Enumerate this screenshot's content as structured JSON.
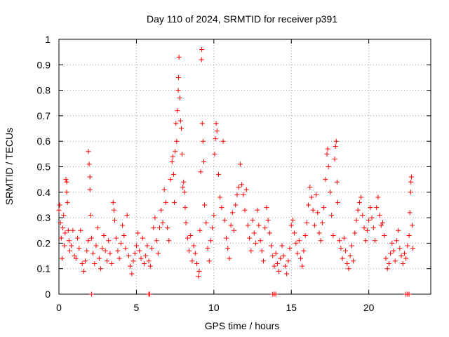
{
  "chart_data": {
    "type": "scatter",
    "title": "Day 110 of 2024, SRMTID for receiver p391",
    "xlabel": "GPS time / hours",
    "ylabel": "SRMTID / TECUs",
    "xlim": [
      0,
      24
    ],
    "ylim": [
      0,
      1
    ],
    "xticks": [
      0,
      5,
      10,
      15,
      20
    ],
    "xtick_labels": [
      "0",
      "5",
      "10",
      "15",
      "20"
    ],
    "yticks": [
      0,
      0.1,
      0.2,
      0.3,
      0.4,
      0.5,
      0.6,
      0.7,
      0.8,
      0.9,
      1
    ],
    "ytick_labels": [
      "0",
      "0.1",
      "0.2",
      "0.3",
      "0.4",
      "0.5",
      "0.6",
      "0.7",
      "0.8",
      "0.9",
      "1"
    ],
    "grid": true,
    "marker": "+",
    "color": "#ff0000",
    "series": [
      {
        "name": "SRMTID",
        "points": [
          [
            0.0,
            0.33
          ],
          [
            0.05,
            0.35
          ],
          [
            0.1,
            0.28
          ],
          [
            0.15,
            0.22
          ],
          [
            0.2,
            0.14
          ],
          [
            0.25,
            0.26
          ],
          [
            0.3,
            0.31
          ],
          [
            0.35,
            0.19
          ],
          [
            0.4,
            0.24
          ],
          [
            0.45,
            0.45
          ],
          [
            0.5,
            0.44
          ],
          [
            0.5,
            0.4
          ],
          [
            0.55,
            0.36
          ],
          [
            0.6,
            0.25
          ],
          [
            0.65,
            0.21
          ],
          [
            0.7,
            0.17
          ],
          [
            0.8,
            0.19
          ],
          [
            0.9,
            0.25
          ],
          [
            1.0,
            0.15
          ],
          [
            1.1,
            0.14
          ],
          [
            1.2,
            0.22
          ],
          [
            1.3,
            0.18
          ],
          [
            1.4,
            0.25
          ],
          [
            1.5,
            0.12
          ],
          [
            1.6,
            0.09
          ],
          [
            1.7,
            0.13
          ],
          [
            1.8,
            0.17
          ],
          [
            1.9,
            0.21
          ],
          [
            1.9,
            0.56
          ],
          [
            1.95,
            0.51
          ],
          [
            2.0,
            0.46
          ],
          [
            2.0,
            0.41
          ],
          [
            2.05,
            0.31
          ],
          [
            2.1,
            0.22
          ],
          [
            2.2,
            0.16
          ],
          [
            2.3,
            0.12
          ],
          [
            2.4,
            0.19
          ],
          [
            2.5,
            0.26
          ],
          [
            2.6,
            0.14
          ],
          [
            2.7,
            0.1
          ],
          [
            2.8,
            0.18
          ],
          [
            2.9,
            0.23
          ],
          [
            3.0,
            0.17
          ],
          [
            3.1,
            0.13
          ],
          [
            3.2,
            0.21
          ],
          [
            3.3,
            0.16
          ],
          [
            3.4,
            0.12
          ],
          [
            3.5,
            0.36
          ],
          [
            3.55,
            0.33
          ],
          [
            3.6,
            0.29
          ],
          [
            3.7,
            0.22
          ],
          [
            3.8,
            0.17
          ],
          [
            3.9,
            0.14
          ],
          [
            4.0,
            0.2
          ],
          [
            4.1,
            0.27
          ],
          [
            4.2,
            0.23
          ],
          [
            4.3,
            0.18
          ],
          [
            4.4,
            0.31
          ],
          [
            4.5,
            0.15
          ],
          [
            4.6,
            0.11
          ],
          [
            4.7,
            0.08
          ],
          [
            4.8,
            0.13
          ],
          [
            4.9,
            0.16
          ],
          [
            5.0,
            0.19
          ],
          [
            5.1,
            0.24
          ],
          [
            5.2,
            0.17
          ],
          [
            5.3,
            0.14
          ],
          [
            5.4,
            0.22
          ],
          [
            5.5,
            0.12
          ],
          [
            5.6,
            0.15
          ],
          [
            5.7,
            0.19
          ],
          [
            5.8,
            0.13
          ],
          [
            5.9,
            0.11
          ],
          [
            6.0,
            0.18
          ],
          [
            6.1,
            0.26
          ],
          [
            6.2,
            0.3
          ],
          [
            6.3,
            0.21
          ],
          [
            6.4,
            0.16
          ],
          [
            6.5,
            0.26
          ],
          [
            6.6,
            0.33
          ],
          [
            6.7,
            0.28
          ],
          [
            6.8,
            0.41
          ],
          [
            6.9,
            0.36
          ],
          [
            7.0,
            0.26
          ],
          [
            7.1,
            0.21
          ],
          [
            7.2,
            0.45
          ],
          [
            7.3,
            0.52
          ],
          [
            7.35,
            0.54
          ],
          [
            7.4,
            0.47
          ],
          [
            7.45,
            0.36
          ],
          [
            7.5,
            0.56
          ],
          [
            7.55,
            0.67
          ],
          [
            7.6,
            0.6
          ],
          [
            7.65,
            0.72
          ],
          [
            7.7,
            0.8
          ],
          [
            7.72,
            0.85
          ],
          [
            7.75,
            0.93
          ],
          [
            7.8,
            0.77
          ],
          [
            7.85,
            0.68
          ],
          [
            7.9,
            0.65
          ],
          [
            7.95,
            0.55
          ],
          [
            8.0,
            0.42
          ],
          [
            8.05,
            0.44
          ],
          [
            8.1,
            0.4
          ],
          [
            8.15,
            0.34
          ],
          [
            8.2,
            0.28
          ],
          [
            8.3,
            0.22
          ],
          [
            8.4,
            0.17
          ],
          [
            8.5,
            0.23
          ],
          [
            8.6,
            0.13
          ],
          [
            8.7,
            0.19
          ],
          [
            8.8,
            0.16
          ],
          [
            8.9,
            0.12
          ],
          [
            9.0,
            0.07
          ],
          [
            9.05,
            0.09
          ],
          [
            9.1,
            0.25
          ],
          [
            9.15,
            0.48
          ],
          [
            9.2,
            0.92
          ],
          [
            9.22,
            0.96
          ],
          [
            9.25,
            0.67
          ],
          [
            9.3,
            0.6
          ],
          [
            9.35,
            0.52
          ],
          [
            9.4,
            0.35
          ],
          [
            9.5,
            0.28
          ],
          [
            9.6,
            0.18
          ],
          [
            9.7,
            0.13
          ],
          [
            9.8,
            0.21
          ],
          [
            9.9,
            0.26
          ],
          [
            10.0,
            0.31
          ],
          [
            10.05,
            0.55
          ],
          [
            10.1,
            0.61
          ],
          [
            10.15,
            0.67
          ],
          [
            10.2,
            0.64
          ],
          [
            10.3,
            0.47
          ],
          [
            10.4,
            0.38
          ],
          [
            10.5,
            0.34
          ],
          [
            10.6,
            0.6
          ],
          [
            10.7,
            0.29
          ],
          [
            10.8,
            0.22
          ],
          [
            10.9,
            0.18
          ],
          [
            11.0,
            0.14
          ],
          [
            11.1,
            0.27
          ],
          [
            11.2,
            0.32
          ],
          [
            11.3,
            0.25
          ],
          [
            11.4,
            0.35
          ],
          [
            11.5,
            0.39
          ],
          [
            11.6,
            0.42
          ],
          [
            11.7,
            0.51
          ],
          [
            11.8,
            0.43
          ],
          [
            11.9,
            0.39
          ],
          [
            12.0,
            0.33
          ],
          [
            12.1,
            0.41
          ],
          [
            12.2,
            0.27
          ],
          [
            12.3,
            0.22
          ],
          [
            12.4,
            0.17
          ],
          [
            12.5,
            0.29
          ],
          [
            12.6,
            0.24
          ],
          [
            12.7,
            0.2
          ],
          [
            12.8,
            0.33
          ],
          [
            12.9,
            0.27
          ],
          [
            13.0,
            0.21
          ],
          [
            13.1,
            0.17
          ],
          [
            13.2,
            0.13
          ],
          [
            13.3,
            0.26
          ],
          [
            13.4,
            0.34
          ],
          [
            13.5,
            0.29
          ],
          [
            13.6,
            0.24
          ],
          [
            13.7,
            0.19
          ],
          [
            13.8,
            0.15
          ],
          [
            13.9,
            0.11
          ],
          [
            14.0,
            0.16
          ],
          [
            14.1,
            0.12
          ],
          [
            14.2,
            0.09
          ],
          [
            14.3,
            0.14
          ],
          [
            14.4,
            0.19
          ],
          [
            14.5,
            0.15
          ],
          [
            14.6,
            0.11
          ],
          [
            14.7,
            0.08
          ],
          [
            14.8,
            0.13
          ],
          [
            14.9,
            0.18
          ],
          [
            15.0,
            0.27
          ],
          [
            15.1,
            0.29
          ],
          [
            15.2,
            0.24
          ],
          [
            15.3,
            0.2
          ],
          [
            15.4,
            0.16
          ],
          [
            15.5,
            0.21
          ],
          [
            15.6,
            0.14
          ],
          [
            15.7,
            0.11
          ],
          [
            15.8,
            0.17
          ],
          [
            15.9,
            0.23
          ],
          [
            16.0,
            0.28
          ],
          [
            16.1,
            0.35
          ],
          [
            16.2,
            0.42
          ],
          [
            16.3,
            0.38
          ],
          [
            16.4,
            0.33
          ],
          [
            16.5,
            0.27
          ],
          [
            16.6,
            0.39
          ],
          [
            16.7,
            0.32
          ],
          [
            16.8,
            0.24
          ],
          [
            16.9,
            0.21
          ],
          [
            17.0,
            0.28
          ],
          [
            17.1,
            0.34
          ],
          [
            17.2,
            0.45
          ],
          [
            17.3,
            0.55
          ],
          [
            17.35,
            0.57
          ],
          [
            17.4,
            0.5
          ],
          [
            17.5,
            0.4
          ],
          [
            17.6,
            0.31
          ],
          [
            17.7,
            0.23
          ],
          [
            17.8,
            0.53
          ],
          [
            17.85,
            0.58
          ],
          [
            17.9,
            0.6
          ],
          [
            17.95,
            0.44
          ],
          [
            18.0,
            0.36
          ],
          [
            18.1,
            0.21
          ],
          [
            18.2,
            0.18
          ],
          [
            18.3,
            0.14
          ],
          [
            18.4,
            0.22
          ],
          [
            18.5,
            0.17
          ],
          [
            18.6,
            0.12
          ],
          [
            18.7,
            0.1
          ],
          [
            18.8,
            0.15
          ],
          [
            18.9,
            0.19
          ],
          [
            19.0,
            0.13
          ],
          [
            19.1,
            0.24
          ],
          [
            19.2,
            0.29
          ],
          [
            19.3,
            0.33
          ],
          [
            19.4,
            0.36
          ],
          [
            19.5,
            0.38
          ],
          [
            19.6,
            0.31
          ],
          [
            19.7,
            0.26
          ],
          [
            19.8,
            0.21
          ],
          [
            19.9,
            0.25
          ],
          [
            20.0,
            0.29
          ],
          [
            20.1,
            0.34
          ],
          [
            20.2,
            0.3
          ],
          [
            20.3,
            0.26
          ],
          [
            20.4,
            0.21
          ],
          [
            20.5,
            0.34
          ],
          [
            20.6,
            0.38
          ],
          [
            20.7,
            0.31
          ],
          [
            20.8,
            0.27
          ],
          [
            20.9,
            0.28
          ],
          [
            21.0,
            0.23
          ],
          [
            21.1,
            0.14
          ],
          [
            21.2,
            0.1
          ],
          [
            21.3,
            0.12
          ],
          [
            21.4,
            0.16
          ],
          [
            21.5,
            0.2
          ],
          [
            21.6,
            0.17
          ],
          [
            21.7,
            0.13
          ],
          [
            21.8,
            0.21
          ],
          [
            21.9,
            0.25
          ],
          [
            22.0,
            0.18
          ],
          [
            22.1,
            0.15
          ],
          [
            22.2,
            0.12
          ],
          [
            22.3,
            0.16
          ],
          [
            22.4,
            0.14
          ],
          [
            22.5,
            0.19
          ],
          [
            22.6,
            0.23
          ],
          [
            22.65,
            0.32
          ],
          [
            22.7,
            0.4
          ],
          [
            22.72,
            0.44
          ],
          [
            22.75,
            0.46
          ],
          [
            22.8,
            0.27
          ],
          [
            22.85,
            0.18
          ]
        ],
        "zero_points": [
          2.1,
          5.8,
          5.85,
          13.8,
          13.9,
          14.0,
          22.4,
          22.5,
          22.6
        ]
      }
    ]
  }
}
